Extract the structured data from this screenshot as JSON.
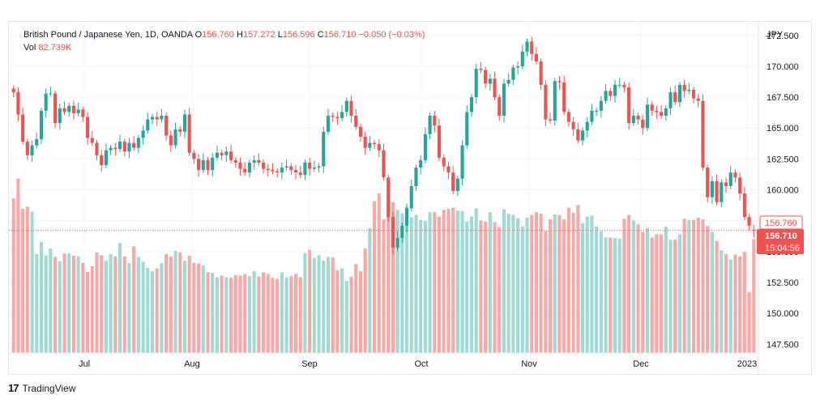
{
  "legend": {
    "symbol": "British Pound / Japanese Yen, 1D, OANDA",
    "open_label": "O",
    "open": "156.760",
    "high_label": "H",
    "high": "157.272",
    "low_label": "L",
    "low": "156.596",
    "close_label": "C",
    "close": "156.710",
    "change": "−0.050 (−0.03%)",
    "vol_label": "Vol",
    "vol": "82.739K"
  },
  "footer": {
    "brand": "TradingView",
    "logo": "17"
  },
  "colors": {
    "up": "#26a69a",
    "down": "#ef5350",
    "up_vol": "#a1d9d3",
    "down_vol": "#f7a9a7",
    "grid": "#f0f3fa",
    "text": "#131722"
  },
  "chart_data": {
    "type": "candlestick",
    "currency": "JPY",
    "ylim": [
      146.8,
      173.6
    ],
    "y_ticks": [
      "172.500",
      "170.000",
      "167.500",
      "165.000",
      "162.500",
      "160.000",
      "157.500",
      "155.000",
      "152.500",
      "150.000",
      "147.500"
    ],
    "x_ticks": [
      "Jul",
      "Aug",
      "Sep",
      "Oct",
      "Nov",
      "Dec",
      "2023"
    ],
    "last_open_tag": "156.760",
    "last_price_tag": "156.710",
    "countdown": "15:04:56",
    "closes": [
      167.9,
      166.1,
      163.9,
      162.8,
      163.6,
      164.1,
      166.4,
      167.8,
      167.8,
      165.4,
      166.6,
      166.3,
      166.8,
      166.2,
      166.5,
      165.9,
      164.2,
      163.8,
      162.8,
      162.0,
      163.2,
      163.4,
      163.3,
      163.9,
      163.1,
      163.8,
      163.4,
      164.2,
      164.8,
      165.7,
      165.9,
      165.7,
      166.0,
      164.4,
      163.6,
      164.9,
      164.7,
      166.1,
      163.0,
      162.5,
      161.6,
      162.4,
      161.6,
      162.6,
      163.0,
      162.8,
      163.1,
      162.4,
      162.2,
      161.7,
      161.4,
      162.2,
      162.4,
      162.2,
      161.7,
      161.6,
      161.5,
      161.4,
      161.8,
      161.9,
      161.6,
      161.4,
      161.2,
      162.2,
      161.7,
      161.8,
      161.9,
      164.7,
      166.0,
      165.9,
      165.8,
      166.3,
      167.2,
      166.0,
      165.1,
      164.3,
      163.4,
      163.8,
      163.7,
      163.2,
      161.0,
      157.8,
      155.3,
      156.1,
      157.1,
      158.5,
      160.3,
      161.8,
      162.4,
      164.5,
      166.0,
      165.2,
      162.6,
      161.9,
      161.4,
      159.9,
      160.9,
      163.6,
      166.3,
      167.5,
      169.8,
      169.7,
      168.6,
      169.0,
      167.5,
      166.0,
      168.6,
      168.9,
      169.9,
      170.0,
      171.2,
      172.0,
      171.0,
      170.4,
      168.5,
      165.7,
      165.6,
      168.8,
      168.7,
      166.3,
      165.5,
      164.9,
      164.0,
      164.8,
      165.5,
      166.4,
      166.4,
      167.2,
      168.0,
      167.6,
      168.5,
      168.5,
      168.3,
      165.4,
      166.0,
      165.7,
      165.0,
      166.9,
      166.4,
      166.3,
      166.0,
      166.6,
      167.9,
      167.1,
      168.5,
      168.0,
      168.1,
      167.4,
      167.2,
      161.8,
      159.4,
      160.7,
      159.0,
      160.6,
      160.3,
      161.4,
      161.0,
      159.7,
      157.8,
      157.1,
      156.7
    ],
    "volumes": [
      28.0,
      31.6,
      26.1,
      26.5,
      25.6,
      17.9,
      20.1,
      17.7,
      18.9,
      17.4,
      16.6,
      18.0,
      18.0,
      17.6,
      17.5,
      16.3,
      14.7,
      15.7,
      18.2,
      17.7,
      16.7,
      17.9,
      17.5,
      19.9,
      17.5,
      16.3,
      19.3,
      17.4,
      16.5,
      15.4,
      14.8,
      15.3,
      16.3,
      17.9,
      17.5,
      18.5,
      18.2,
      16.7,
      17.6,
      16.3,
      16.2,
      15.8,
      14.6,
      14.5,
      13.7,
      14.0,
      13.7,
      13.6,
      14.1,
      14.0,
      14.3,
      13.9,
      14.8,
      13.8,
      14.6,
      14.3,
      13.6,
      13.4,
      14.6,
      13.7,
      13.9,
      14.3,
      13.7,
      18.1,
      18.7,
      17.2,
      17.7,
      16.7,
      17.4,
      17.3,
      15.0,
      15.3,
      13.0,
      13.8,
      16.1,
      14.8,
      18.9,
      22.6,
      27.5,
      28.9,
      24.2,
      26.4,
      27.3,
      25.9,
      25.3,
      26.5,
      24.6,
      25.0,
      24.1,
      23.9,
      25.5,
      25.5,
      24.7,
      25.9,
      26.1,
      26.3,
      25.8,
      25.7,
      23.8,
      24.7,
      26.2,
      24.0,
      23.8,
      25.5,
      23.7,
      22.8,
      26.0,
      25.2,
      25.0,
      24.4,
      22.9,
      24.5,
      25.0,
      25.5,
      25.2,
      22.1,
      24.2,
      25.1,
      25.0,
      24.2,
      26.3,
      25.4,
      26.8,
      23.5,
      24.7,
      24.9,
      22.9,
      22.0,
      20.9,
      20.9,
      20.8,
      20.7,
      24.3,
      25.0,
      24.0,
      23.3,
      21.9,
      22.6,
      20.9,
      21.5,
      21.5,
      22.9,
      20.5,
      20.5,
      21.5,
      24.3,
      24.1,
      24.1,
      24.5,
      24.2,
      23.0,
      21.9,
      20.3,
      18.6,
      17.9,
      16.9,
      17.8,
      17.5,
      18.3,
      11.0,
      20.6,
      11.0
    ],
    "vol_ylim": [
      0,
      60
    ]
  }
}
